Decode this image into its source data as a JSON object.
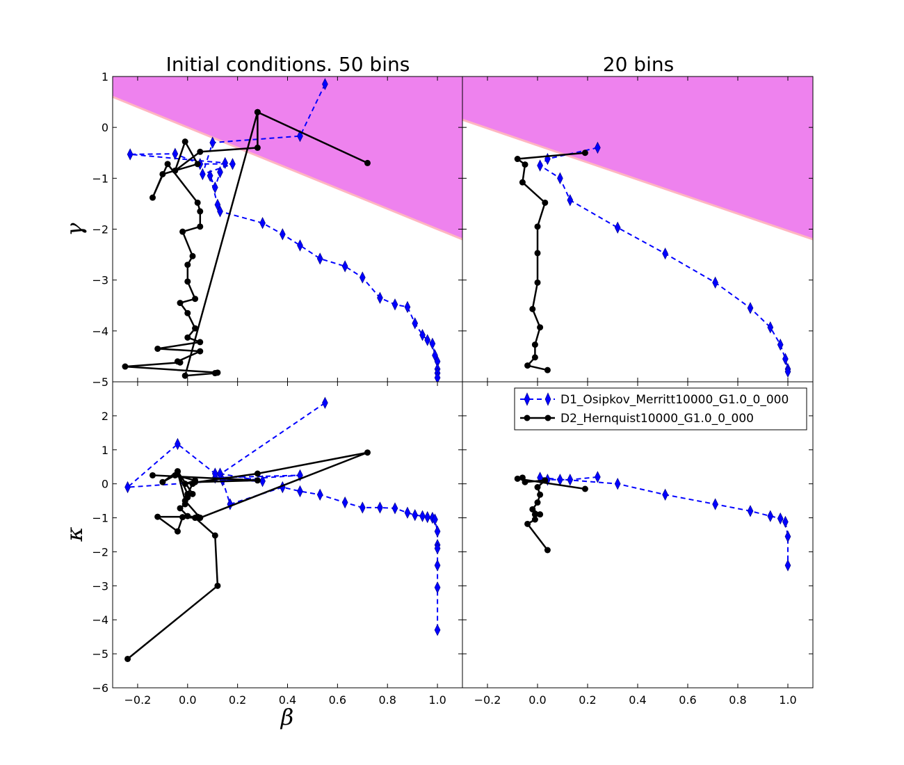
{
  "chart_data": {
    "type": "line",
    "colors": {
      "forbidden_region": "#EE82EE",
      "boundary_line": "#FFB6C1",
      "series_d1": "#0000FF",
      "series_d2": "#000000"
    },
    "legend": {
      "position": "upper-right of bottom-right panel",
      "entries": [
        "D1_Osipkov_Merritt10000_G1.0_0_000",
        "D2_Hernquist10000_G1.0_0_000"
      ]
    },
    "shared_axes": {
      "xlabel": "β",
      "xlim": [
        -0.3,
        1.1
      ],
      "xticks": [
        -0.2,
        0.0,
        0.2,
        0.4,
        0.6,
        0.8,
        1.0
      ],
      "xtick_labels": [
        "−0.2",
        "0.0",
        "0.2",
        "0.4",
        "0.6",
        "0.8",
        "1.0"
      ]
    },
    "panels": [
      {
        "id": "top-left",
        "title": "Initial conditions. 50 bins",
        "ylabel": "γ",
        "ylim": [
          -5,
          1
        ],
        "yticks": [
          1,
          0,
          -1,
          -2,
          -3,
          -4,
          -5
        ],
        "ytick_labels": [
          "1",
          "0",
          "−1",
          "−2",
          "−3",
          "−4",
          "−5"
        ],
        "shaded_region": {
          "boundary_y_at_xmin": 0.6,
          "boundary_y_at_xmax": -2.2,
          "fill": "above"
        },
        "series": [
          {
            "name": "D1_Osipkov_Merritt10000_G1.0_0_000",
            "x": [
              0.55,
              0.45,
              0.1,
              0.06,
              0.18,
              0.05,
              -0.05,
              -0.23,
              0.15,
              0.13,
              0.11,
              0.09,
              0.12,
              0.13,
              0.3,
              0.38,
              0.45,
              0.53,
              0.63,
              0.7,
              0.77,
              0.83,
              0.88,
              0.91,
              0.94,
              0.96,
              0.98,
              0.99,
              1.0,
              1.0,
              1.0,
              1.0
            ],
            "y": [
              0.85,
              -0.17,
              -0.3,
              -0.92,
              -0.72,
              -0.72,
              -0.52,
              -0.53,
              -0.7,
              -0.88,
              -1.18,
              -0.95,
              -1.52,
              -1.65,
              -1.88,
              -2.1,
              -2.32,
              -2.58,
              -2.73,
              -2.95,
              -3.35,
              -3.48,
              -3.53,
              -3.85,
              -4.08,
              -4.18,
              -4.25,
              -4.48,
              -4.6,
              -4.75,
              -4.83,
              -4.92
            ]
          },
          {
            "name": "D2_Hernquist10000_G1.0_0_000",
            "x": [
              0.28,
              0.28,
              0.05,
              -0.05,
              -0.01,
              0.04,
              -0.1,
              -0.14,
              -0.08,
              0.04,
              0.05,
              0.05,
              -0.02,
              0.02,
              0.0,
              0.0,
              0.03,
              -0.03,
              0.0,
              0.03,
              0.0,
              0.05,
              -0.12,
              0.05,
              -0.04,
              -0.03,
              -0.25,
              0.12,
              0.11,
              -0.01,
              0.28,
              0.72
            ],
            "y": [
              0.3,
              -0.4,
              -0.48,
              -0.85,
              -0.28,
              -0.72,
              -0.92,
              -1.38,
              -0.72,
              -1.48,
              -1.65,
              -1.95,
              -2.05,
              -2.53,
              -2.7,
              -3.03,
              -3.37,
              -3.45,
              -3.65,
              -3.95,
              -4.13,
              -4.22,
              -4.35,
              -4.4,
              -4.6,
              -4.62,
              -4.7,
              -4.82,
              -4.83,
              -4.88,
              0.3,
              -0.7
            ]
          }
        ]
      },
      {
        "id": "top-right",
        "title": "20 bins",
        "ylim": [
          -5,
          1
        ],
        "shaded_region": {
          "boundary_y_at_xmin": 0.15,
          "boundary_y_at_xmax": -2.2,
          "fill": "above"
        },
        "series": [
          {
            "name": "D1_Osipkov_Merritt10000_G1.0_0_000",
            "x": [
              0.24,
              0.04,
              0.01,
              0.09,
              0.13,
              0.32,
              0.51,
              0.71,
              0.85,
              0.93,
              0.97,
              0.99,
              1.0,
              1.0
            ],
            "y": [
              -0.4,
              -0.62,
              -0.75,
              -1.0,
              -1.43,
              -1.97,
              -2.48,
              -3.05,
              -3.55,
              -3.93,
              -4.27,
              -4.55,
              -4.75,
              -4.8
            ]
          },
          {
            "name": "D2_Hernquist10000_G1.0_0_000",
            "x": [
              0.19,
              -0.08,
              -0.05,
              -0.06,
              0.03,
              0.0,
              0.0,
              0.0,
              -0.02,
              0.01,
              -0.01,
              -0.01,
              -0.04,
              0.04
            ],
            "y": [
              -0.5,
              -0.62,
              -0.73,
              -1.08,
              -1.48,
              -1.95,
              -2.47,
              -3.05,
              -3.57,
              -3.93,
              -4.27,
              -4.52,
              -4.68,
              -4.77
            ]
          }
        ]
      },
      {
        "id": "bottom-left",
        "ylabel": "κ",
        "ylim": [
          -6,
          3
        ],
        "yticks": [
          2,
          1,
          0,
          -1,
          -2,
          -3,
          -4,
          -5,
          -6
        ],
        "ytick_labels": [
          "2",
          "1",
          "0",
          "−1",
          "−2",
          "−3",
          "−4",
          "−5",
          "−6"
        ],
        "series": [
          {
            "name": "D1_Osipkov_Merritt10000_G1.0_0_000",
            "x": [
              0.55,
              0.11,
              0.45,
              -0.24,
              -0.04,
              0.11,
              0.13,
              0.3,
              0.14,
              0.17,
              0.38,
              0.45,
              0.53,
              0.63,
              0.7,
              0.77,
              0.83,
              0.88,
              0.91,
              0.94,
              0.96,
              0.98,
              0.99,
              1.0,
              1.0,
              1.0,
              1.0,
              1.0,
              1.0
            ],
            "y": [
              2.38,
              0.18,
              0.25,
              -0.1,
              1.17,
              0.3,
              0.3,
              0.08,
              0.1,
              -0.6,
              -0.1,
              -0.22,
              -0.32,
              -0.55,
              -0.7,
              -0.7,
              -0.72,
              -0.85,
              -0.92,
              -0.95,
              -0.98,
              -1.0,
              -1.05,
              -1.4,
              -1.8,
              -1.9,
              -2.4,
              -3.05,
              -4.3
            ]
          },
          {
            "name": "D2_Hernquist10000_G1.0_0_000",
            "x": [
              -0.24,
              0.12,
              0.11,
              0.03,
              -0.02,
              -0.04,
              -0.12,
              0.04,
              0.05,
              0.0,
              -0.03,
              -0.01,
              0.0,
              0.02,
              -0.04,
              -0.1,
              -0.05,
              0.03,
              -0.01,
              0.28,
              0.72,
              0.05,
              -0.01,
              -0.04,
              0.0,
              0.02,
              0.03,
              0.28,
              -0.14
            ],
            "y": [
              -5.15,
              -3.0,
              -1.52,
              -1.0,
              -0.98,
              -1.4,
              -0.97,
              -0.97,
              -1.0,
              -0.95,
              -0.72,
              -0.6,
              -0.4,
              -0.3,
              0.37,
              0.05,
              0.25,
              0.1,
              0.0,
              0.3,
              0.92,
              -1.0,
              -0.5,
              0.35,
              -0.3,
              0.0,
              0.05,
              0.1,
              0.25
            ]
          }
        ]
      },
      {
        "id": "bottom-right",
        "ylim": [
          -6,
          3
        ],
        "series": [
          {
            "name": "D1_Osipkov_Merritt10000_G1.0_0_000",
            "x": [
              0.24,
              0.13,
              0.09,
              0.04,
              0.01,
              0.32,
              0.51,
              0.71,
              0.85,
              0.93,
              0.97,
              0.99,
              1.0,
              1.0
            ],
            "y": [
              0.2,
              0.12,
              0.12,
              0.12,
              0.18,
              0.0,
              -0.32,
              -0.6,
              -0.8,
              -0.95,
              -1.02,
              -1.12,
              -1.55,
              -2.4
            ]
          },
          {
            "name": "D2_Hernquist10000_G1.0_0_000",
            "x": [
              0.19,
              -0.08,
              -0.06,
              -0.05,
              0.03,
              0.0,
              0.01,
              0.0,
              -0.02,
              0.01,
              -0.01,
              -0.01,
              -0.04,
              0.04
            ],
            "y": [
              -0.15,
              0.15,
              0.18,
              0.05,
              0.1,
              -0.1,
              -0.32,
              -0.55,
              -0.75,
              -0.9,
              -0.9,
              -1.05,
              -1.18,
              -1.95
            ]
          }
        ]
      }
    ]
  }
}
